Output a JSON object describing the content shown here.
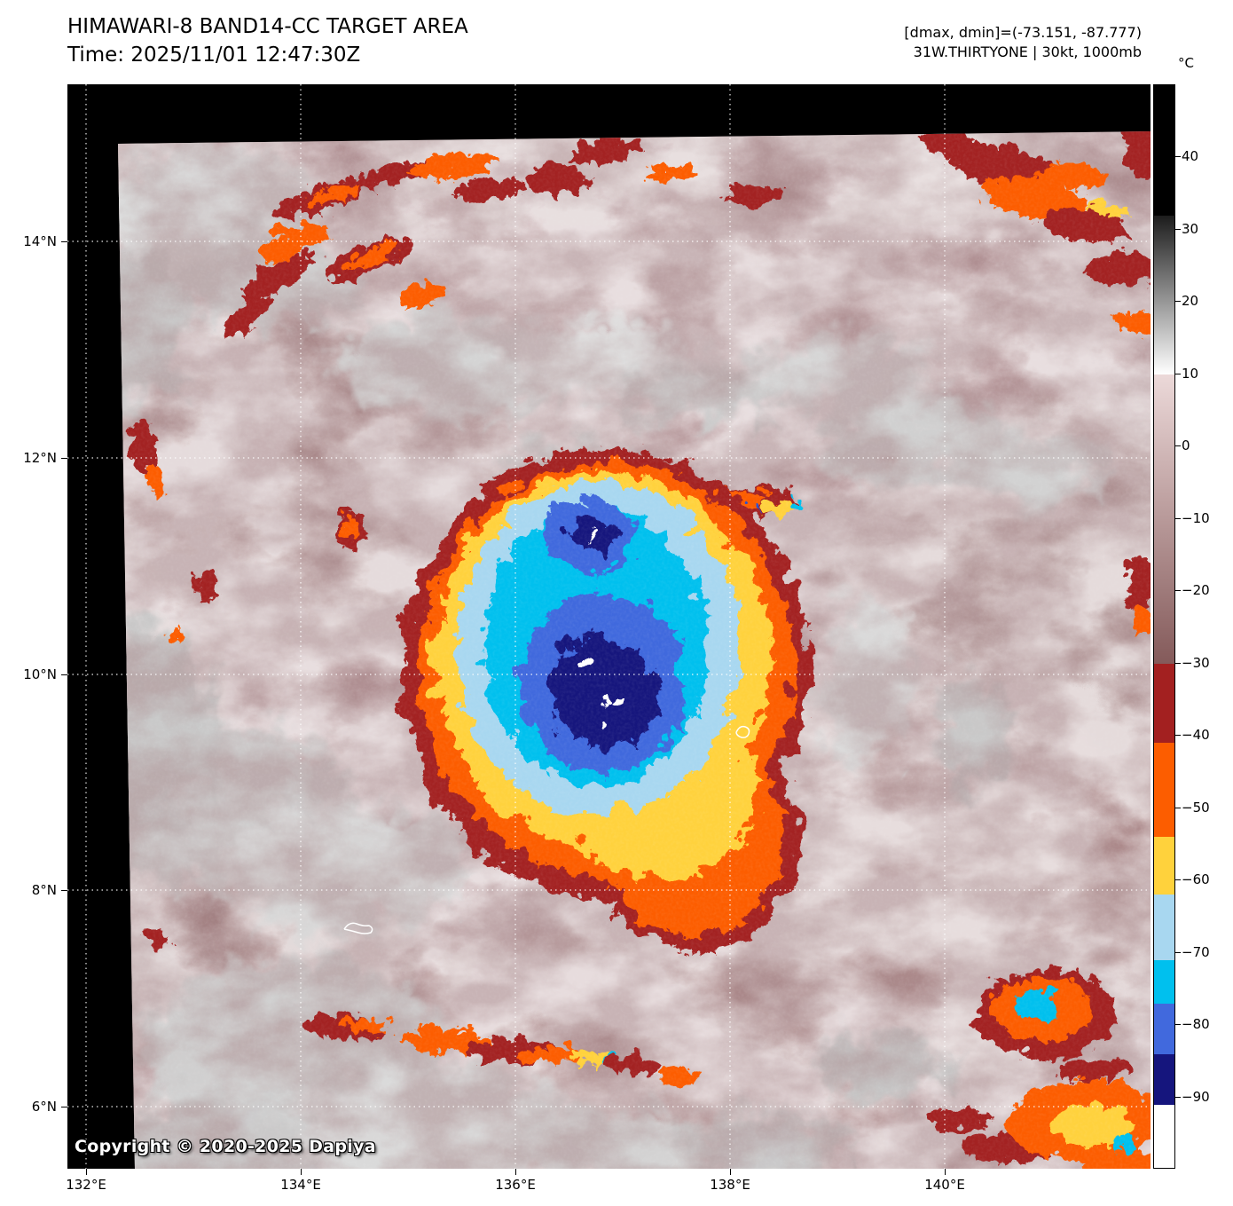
{
  "header": {
    "title_line1": "HIMAWARI-8 BAND14-CC TARGET AREA",
    "title_line2": "Time: 2025/11/01 12:47:30Z",
    "info_line1": "[dmax, dmin]=(-73.151, -87.777)",
    "info_line2": "31W.THIRTYONE | 30kt, 1000mb"
  },
  "plot": {
    "copyright": "Copyright © 2020-2025 Dapiya",
    "x_tick_labels": [
      "132°E",
      "134°E",
      "136°E",
      "138°E",
      "140°E"
    ],
    "y_tick_labels": [
      "14°N",
      "12°N",
      "10°N",
      "8°N",
      "6°N"
    ]
  },
  "colorbar": {
    "unit": "°C",
    "value_range": [
      50,
      -100
    ],
    "tick_values": [
      40,
      30,
      20,
      10,
      0,
      -10,
      -20,
      -30,
      -40,
      -50,
      -60,
      -70,
      -80,
      -90
    ],
    "tick_labels": [
      "40",
      "30",
      "20",
      "10",
      "0",
      "−10",
      "−20",
      "−30",
      "−40",
      "−50",
      "−60",
      "−70",
      "−80",
      "−90"
    ],
    "segments": [
      {
        "from": 50,
        "to": 32,
        "top": "#000000",
        "bottom": "#000000"
      },
      {
        "from": 32,
        "to": 10,
        "top": "#1c1c1c",
        "bottom": "#ffffff"
      },
      {
        "from": 10,
        "to": -30,
        "top": "#ecd9d9",
        "bottom": "#845a5a"
      },
      {
        "from": -30,
        "to": -41,
        "top": "#a32020",
        "bottom": "#a32020"
      },
      {
        "from": -41,
        "to": -54,
        "top": "#fc5d00",
        "bottom": "#fc5d00"
      },
      {
        "from": -54,
        "to": -62,
        "top": "#ffd23c",
        "bottom": "#ffd23c"
      },
      {
        "from": -62,
        "to": -71,
        "top": "#a8d7f0",
        "bottom": "#a8d7f0"
      },
      {
        "from": -71,
        "to": -77,
        "top": "#00c0ee",
        "bottom": "#00c0ee"
      },
      {
        "from": -77,
        "to": -84,
        "top": "#4169dd",
        "bottom": "#4169dd"
      },
      {
        "from": -84,
        "to": -91,
        "top": "#15157d",
        "bottom": "#15157d"
      },
      {
        "from": -91,
        "to": -100,
        "top": "#ffffff",
        "bottom": "#ffffff"
      }
    ]
  }
}
